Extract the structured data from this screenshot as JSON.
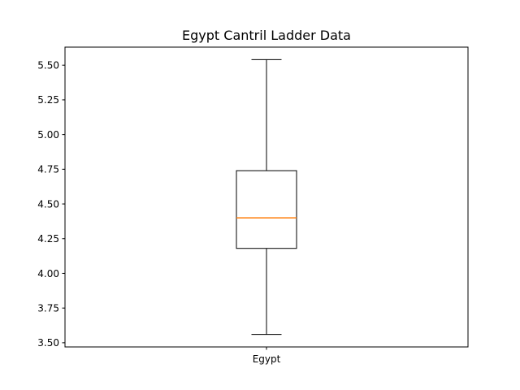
{
  "chart_data": {
    "type": "box",
    "title": "Egypt Cantril Ladder Data",
    "xlabel": "",
    "ylabel": "",
    "categories": [
      "Egypt"
    ],
    "boxes": [
      {
        "category": "Egypt",
        "whisker_low": 3.56,
        "q1": 4.18,
        "median": 4.4,
        "q3": 4.74,
        "whisker_high": 5.54
      }
    ],
    "ylim": [
      3.47,
      5.63
    ],
    "yticks": [
      3.5,
      3.75,
      4.0,
      4.25,
      4.5,
      4.75,
      5.0,
      5.25,
      5.5
    ],
    "ytick_labels": [
      "3.50",
      "3.75",
      "4.00",
      "4.25",
      "4.50",
      "4.75",
      "5.00",
      "5.25",
      "5.50"
    ],
    "grid": false,
    "colors": {
      "box": "#000000",
      "median": "#ff7f0e",
      "whisker": "#000000"
    }
  }
}
